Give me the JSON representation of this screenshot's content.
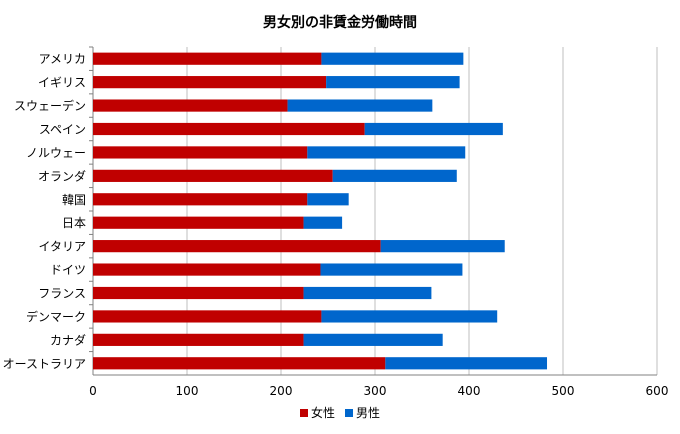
{
  "chart_data": {
    "type": "bar",
    "orientation": "horizontal",
    "stacked": true,
    "title": "男女別の非賃金労働時間",
    "categories": [
      "アメリカ",
      "イギリス",
      "スウェーデン",
      "スペイン",
      "ノルウェー",
      "オランダ",
      "韓国",
      "日本",
      "イタリア",
      "ドイツ",
      "フランス",
      "デンマーク",
      "カナダ",
      "オーストラリア"
    ],
    "series": [
      {
        "name": "女性",
        "color": "#c00000",
        "values": [
          243,
          248,
          207,
          289,
          228,
          255,
          228,
          224,
          306,
          242,
          224,
          243,
          224,
          311
        ]
      },
      {
        "name": "男性",
        "color": "#0066cc",
        "values": [
          151,
          142,
          154,
          147,
          168,
          132,
          44,
          41,
          132,
          151,
          136,
          187,
          148,
          172
        ]
      }
    ],
    "xlim": [
      0,
      600
    ],
    "xticks": [
      "0",
      "100",
      "200",
      "300",
      "400",
      "500",
      "600"
    ],
    "grid": true,
    "legend_position": "bottom"
  }
}
